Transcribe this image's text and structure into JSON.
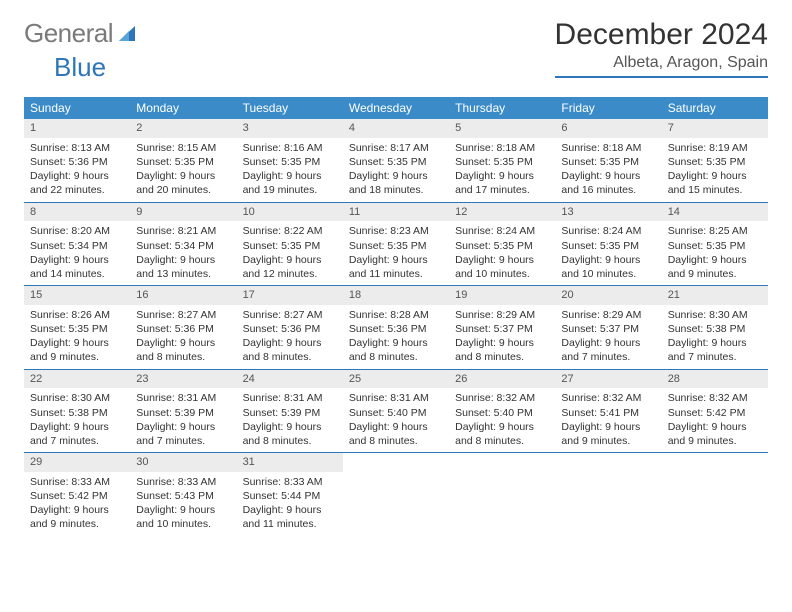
{
  "logo": {
    "text1": "General",
    "text2": "Blue"
  },
  "title": "December 2024",
  "location": "Albeta, Aragon, Spain",
  "colors": {
    "accent": "#2d77b8",
    "header_bg": "#3b8bc9",
    "daynum_bg": "#ececec",
    "text": "#333333",
    "logo_gray": "#7a7a7a"
  },
  "weekdays": [
    "Sunday",
    "Monday",
    "Tuesday",
    "Wednesday",
    "Thursday",
    "Friday",
    "Saturday"
  ],
  "weeks": [
    [
      {
        "n": "1",
        "sr": "Sunrise: 8:13 AM",
        "ss": "Sunset: 5:36 PM",
        "d1": "Daylight: 9 hours",
        "d2": "and 22 minutes."
      },
      {
        "n": "2",
        "sr": "Sunrise: 8:15 AM",
        "ss": "Sunset: 5:35 PM",
        "d1": "Daylight: 9 hours",
        "d2": "and 20 minutes."
      },
      {
        "n": "3",
        "sr": "Sunrise: 8:16 AM",
        "ss": "Sunset: 5:35 PM",
        "d1": "Daylight: 9 hours",
        "d2": "and 19 minutes."
      },
      {
        "n": "4",
        "sr": "Sunrise: 8:17 AM",
        "ss": "Sunset: 5:35 PM",
        "d1": "Daylight: 9 hours",
        "d2": "and 18 minutes."
      },
      {
        "n": "5",
        "sr": "Sunrise: 8:18 AM",
        "ss": "Sunset: 5:35 PM",
        "d1": "Daylight: 9 hours",
        "d2": "and 17 minutes."
      },
      {
        "n": "6",
        "sr": "Sunrise: 8:18 AM",
        "ss": "Sunset: 5:35 PM",
        "d1": "Daylight: 9 hours",
        "d2": "and 16 minutes."
      },
      {
        "n": "7",
        "sr": "Sunrise: 8:19 AM",
        "ss": "Sunset: 5:35 PM",
        "d1": "Daylight: 9 hours",
        "d2": "and 15 minutes."
      }
    ],
    [
      {
        "n": "8",
        "sr": "Sunrise: 8:20 AM",
        "ss": "Sunset: 5:34 PM",
        "d1": "Daylight: 9 hours",
        "d2": "and 14 minutes."
      },
      {
        "n": "9",
        "sr": "Sunrise: 8:21 AM",
        "ss": "Sunset: 5:34 PM",
        "d1": "Daylight: 9 hours",
        "d2": "and 13 minutes."
      },
      {
        "n": "10",
        "sr": "Sunrise: 8:22 AM",
        "ss": "Sunset: 5:35 PM",
        "d1": "Daylight: 9 hours",
        "d2": "and 12 minutes."
      },
      {
        "n": "11",
        "sr": "Sunrise: 8:23 AM",
        "ss": "Sunset: 5:35 PM",
        "d1": "Daylight: 9 hours",
        "d2": "and 11 minutes."
      },
      {
        "n": "12",
        "sr": "Sunrise: 8:24 AM",
        "ss": "Sunset: 5:35 PM",
        "d1": "Daylight: 9 hours",
        "d2": "and 10 minutes."
      },
      {
        "n": "13",
        "sr": "Sunrise: 8:24 AM",
        "ss": "Sunset: 5:35 PM",
        "d1": "Daylight: 9 hours",
        "d2": "and 10 minutes."
      },
      {
        "n": "14",
        "sr": "Sunrise: 8:25 AM",
        "ss": "Sunset: 5:35 PM",
        "d1": "Daylight: 9 hours",
        "d2": "and 9 minutes."
      }
    ],
    [
      {
        "n": "15",
        "sr": "Sunrise: 8:26 AM",
        "ss": "Sunset: 5:35 PM",
        "d1": "Daylight: 9 hours",
        "d2": "and 9 minutes."
      },
      {
        "n": "16",
        "sr": "Sunrise: 8:27 AM",
        "ss": "Sunset: 5:36 PM",
        "d1": "Daylight: 9 hours",
        "d2": "and 8 minutes."
      },
      {
        "n": "17",
        "sr": "Sunrise: 8:27 AM",
        "ss": "Sunset: 5:36 PM",
        "d1": "Daylight: 9 hours",
        "d2": "and 8 minutes."
      },
      {
        "n": "18",
        "sr": "Sunrise: 8:28 AM",
        "ss": "Sunset: 5:36 PM",
        "d1": "Daylight: 9 hours",
        "d2": "and 8 minutes."
      },
      {
        "n": "19",
        "sr": "Sunrise: 8:29 AM",
        "ss": "Sunset: 5:37 PM",
        "d1": "Daylight: 9 hours",
        "d2": "and 8 minutes."
      },
      {
        "n": "20",
        "sr": "Sunrise: 8:29 AM",
        "ss": "Sunset: 5:37 PM",
        "d1": "Daylight: 9 hours",
        "d2": "and 7 minutes."
      },
      {
        "n": "21",
        "sr": "Sunrise: 8:30 AM",
        "ss": "Sunset: 5:38 PM",
        "d1": "Daylight: 9 hours",
        "d2": "and 7 minutes."
      }
    ],
    [
      {
        "n": "22",
        "sr": "Sunrise: 8:30 AM",
        "ss": "Sunset: 5:38 PM",
        "d1": "Daylight: 9 hours",
        "d2": "and 7 minutes."
      },
      {
        "n": "23",
        "sr": "Sunrise: 8:31 AM",
        "ss": "Sunset: 5:39 PM",
        "d1": "Daylight: 9 hours",
        "d2": "and 7 minutes."
      },
      {
        "n": "24",
        "sr": "Sunrise: 8:31 AM",
        "ss": "Sunset: 5:39 PM",
        "d1": "Daylight: 9 hours",
        "d2": "and 8 minutes."
      },
      {
        "n": "25",
        "sr": "Sunrise: 8:31 AM",
        "ss": "Sunset: 5:40 PM",
        "d1": "Daylight: 9 hours",
        "d2": "and 8 minutes."
      },
      {
        "n": "26",
        "sr": "Sunrise: 8:32 AM",
        "ss": "Sunset: 5:40 PM",
        "d1": "Daylight: 9 hours",
        "d2": "and 8 minutes."
      },
      {
        "n": "27",
        "sr": "Sunrise: 8:32 AM",
        "ss": "Sunset: 5:41 PM",
        "d1": "Daylight: 9 hours",
        "d2": "and 9 minutes."
      },
      {
        "n": "28",
        "sr": "Sunrise: 8:32 AM",
        "ss": "Sunset: 5:42 PM",
        "d1": "Daylight: 9 hours",
        "d2": "and 9 minutes."
      }
    ],
    [
      {
        "n": "29",
        "sr": "Sunrise: 8:33 AM",
        "ss": "Sunset: 5:42 PM",
        "d1": "Daylight: 9 hours",
        "d2": "and 9 minutes."
      },
      {
        "n": "30",
        "sr": "Sunrise: 8:33 AM",
        "ss": "Sunset: 5:43 PM",
        "d1": "Daylight: 9 hours",
        "d2": "and 10 minutes."
      },
      {
        "n": "31",
        "sr": "Sunrise: 8:33 AM",
        "ss": "Sunset: 5:44 PM",
        "d1": "Daylight: 9 hours",
        "d2": "and 11 minutes."
      },
      {
        "empty": true
      },
      {
        "empty": true
      },
      {
        "empty": true
      },
      {
        "empty": true
      }
    ]
  ]
}
